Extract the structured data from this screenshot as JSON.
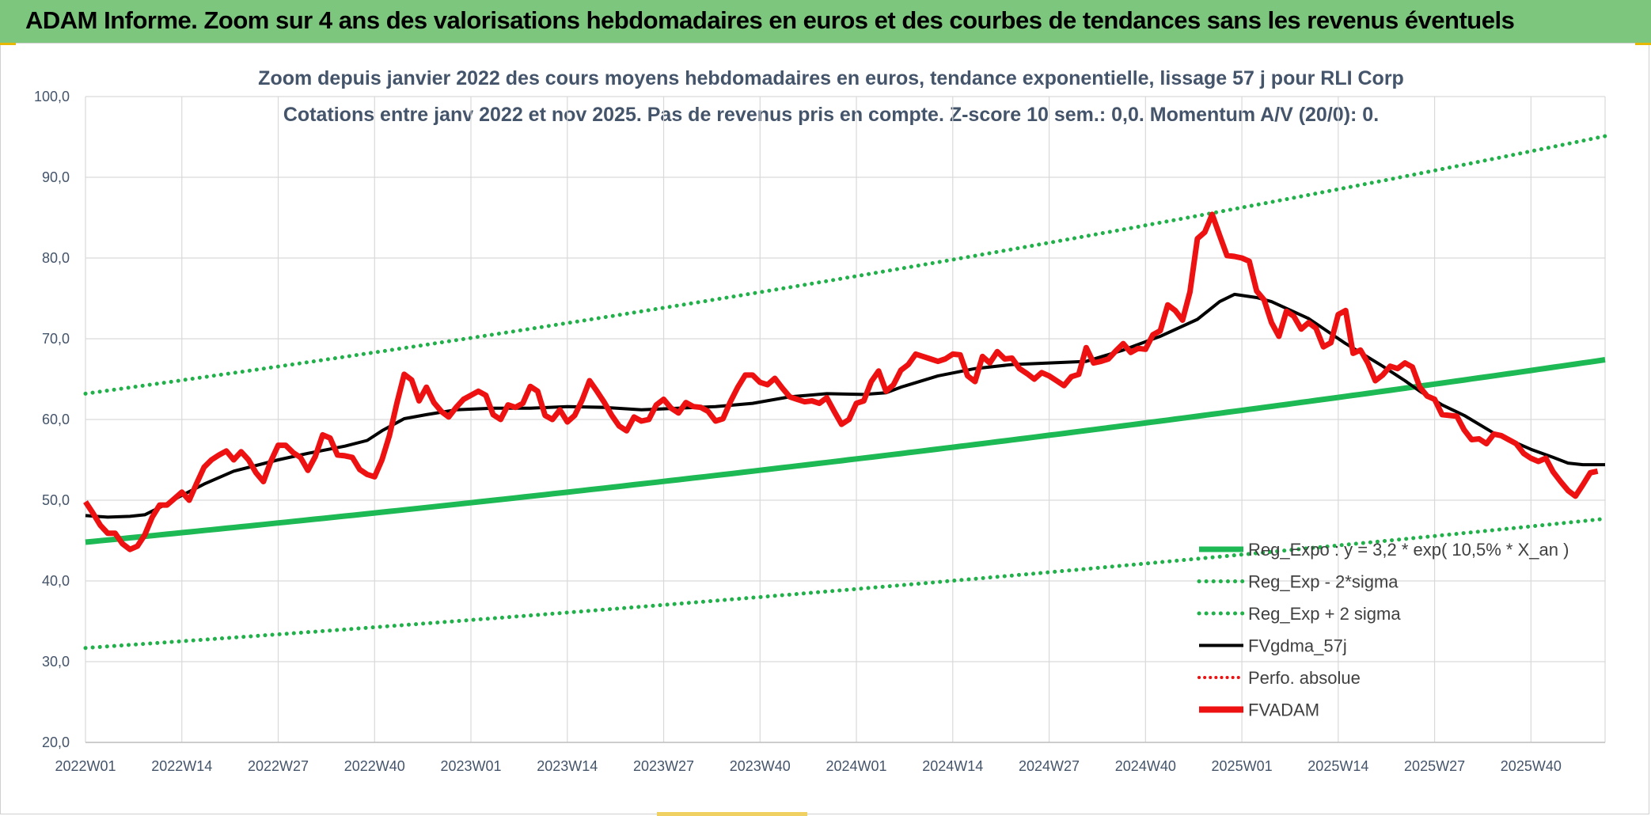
{
  "header": {
    "title": "ADAM Informe. Zoom sur 4 ans des valorisations hebdomadaires en euros et des courbes de tendances sans les revenus éventuels"
  },
  "colors": {
    "trend_green": "#1db954",
    "dotted_green": "#22b04b",
    "ma_black": "#000000",
    "price_red": "#ee1111",
    "grid": "#d9d9d9",
    "banner": "#7dc67d"
  },
  "chart_data": {
    "type": "line",
    "title_line1": "Zoom depuis janvier 2022 des cours moyens hebdomadaires en euros, tendance exponentielle, lissage 57 j pour RLI Corp",
    "title_line2": "Cotations entre janv 2022 et nov 2025. Pas de revenus pris en compte. Z-score 10 sem.: 0,0. Momentum A/V (20/0): 0.",
    "ylim": [
      20,
      100
    ],
    "y_ticks": [
      "20,0",
      "30,0",
      "40,0",
      "50,0",
      "60,0",
      "70,0",
      "80,0",
      "90,0",
      "100,0"
    ],
    "x_ticks": [
      "2022W01",
      "2022W14",
      "2022W27",
      "2022W40",
      "2023W01",
      "2023W14",
      "2023W27",
      "2023W40",
      "2024W01",
      "2024W14",
      "2024W27",
      "2024W40",
      "2025W01",
      "2025W14",
      "2025W27",
      "2025W40"
    ],
    "x_tick_weeks": [
      0,
      13,
      26,
      39,
      52,
      65,
      78,
      91,
      104,
      117,
      130,
      143,
      156,
      169,
      182,
      195
    ],
    "n_weeks": 205,
    "legend": [
      {
        "name": "Reg_Expo : y = 3,2 * exp( 10,5% *  X_an )",
        "style": "solid-green"
      },
      {
        "name": "Reg_Exp - 2*sigma",
        "style": "dotted-green"
      },
      {
        "name": "Reg_Exp + 2 sigma",
        "style": "dotted-green"
      },
      {
        "name": "FVgdma_57j",
        "style": "solid-black"
      },
      {
        "name": "Perfo. absolue",
        "style": "dotted-red"
      },
      {
        "name": "FVADAM",
        "style": "solid-red-thick"
      }
    ],
    "series": [
      {
        "name": "Reg_Expo",
        "start": 44.8,
        "end": 67.4
      },
      {
        "name": "Reg_Exp - 2*sigma",
        "start": 31.7,
        "end": 47.7
      },
      {
        "name": "Reg_Exp + 2 sigma",
        "start": 63.2,
        "end": 95.1
      },
      {
        "name": "FVgdma_57j",
        "points": [
          [
            0,
            48.1
          ],
          [
            3,
            47.9
          ],
          [
            6,
            48.0
          ],
          [
            8,
            48.2
          ],
          [
            10,
            49.1
          ],
          [
            13,
            50.6
          ],
          [
            16,
            52.0
          ],
          [
            20,
            53.6
          ],
          [
            26,
            55.0
          ],
          [
            30,
            55.8
          ],
          [
            35,
            56.7
          ],
          [
            38,
            57.4
          ],
          [
            40,
            58.6
          ],
          [
            43,
            60.1
          ],
          [
            46,
            60.6
          ],
          [
            50,
            61.2
          ],
          [
            55,
            61.4
          ],
          [
            60,
            61.4
          ],
          [
            65,
            61.6
          ],
          [
            70,
            61.5
          ],
          [
            75,
            61.2
          ],
          [
            80,
            61.4
          ],
          [
            85,
            61.6
          ],
          [
            90,
            62.0
          ],
          [
            95,
            62.8
          ],
          [
            100,
            63.2
          ],
          [
            105,
            63.1
          ],
          [
            108,
            63.3
          ],
          [
            110,
            64.0
          ],
          [
            115,
            65.4
          ],
          [
            120,
            66.3
          ],
          [
            125,
            66.8
          ],
          [
            130,
            67.0
          ],
          [
            135,
            67.2
          ],
          [
            140,
            68.6
          ],
          [
            145,
            70.3
          ],
          [
            150,
            72.4
          ],
          [
            153,
            74.6
          ],
          [
            155,
            75.5
          ],
          [
            158,
            75.1
          ],
          [
            160,
            74.6
          ],
          [
            165,
            72.5
          ],
          [
            170,
            69.4
          ],
          [
            175,
            66.6
          ],
          [
            178,
            64.8
          ],
          [
            180,
            63.5
          ],
          [
            183,
            61.8
          ],
          [
            186,
            60.5
          ],
          [
            190,
            58.3
          ],
          [
            195,
            56.3
          ],
          [
            198,
            55.3
          ],
          [
            200,
            54.6
          ],
          [
            202,
            54.4
          ],
          [
            205,
            54.4
          ]
        ]
      },
      {
        "name": "FVADAM",
        "points": [
          [
            0,
            49.8
          ],
          [
            1,
            48.4
          ],
          [
            2,
            46.9
          ],
          [
            3,
            45.9
          ],
          [
            4,
            45.9
          ],
          [
            5,
            44.6
          ],
          [
            6,
            43.9
          ],
          [
            7,
            44.3
          ],
          [
            8,
            45.7
          ],
          [
            9,
            47.9
          ],
          [
            10,
            49.4
          ],
          [
            11,
            49.4
          ],
          [
            12,
            50.2
          ],
          [
            13,
            51.0
          ],
          [
            14,
            50.0
          ],
          [
            15,
            52.1
          ],
          [
            16,
            54.1
          ],
          [
            17,
            55.0
          ],
          [
            18,
            55.6
          ],
          [
            19,
            56.1
          ],
          [
            20,
            55.0
          ],
          [
            21,
            56.0
          ],
          [
            22,
            55.0
          ],
          [
            23,
            53.4
          ],
          [
            24,
            52.3
          ],
          [
            25,
            54.8
          ],
          [
            26,
            56.8
          ],
          [
            27,
            56.8
          ],
          [
            28,
            55.9
          ],
          [
            29,
            55.3
          ],
          [
            30,
            53.7
          ],
          [
            31,
            55.4
          ],
          [
            32,
            58.1
          ],
          [
            33,
            57.7
          ],
          [
            34,
            55.6
          ],
          [
            35,
            55.5
          ],
          [
            36,
            55.3
          ],
          [
            37,
            53.8
          ],
          [
            38,
            53.2
          ],
          [
            39,
            52.9
          ],
          [
            40,
            55.0
          ],
          [
            41,
            58.0
          ],
          [
            42,
            62.0
          ],
          [
            43,
            65.6
          ],
          [
            44,
            64.9
          ],
          [
            45,
            62.3
          ],
          [
            46,
            64.0
          ],
          [
            47,
            62.1
          ],
          [
            48,
            61.0
          ],
          [
            49,
            60.3
          ],
          [
            50,
            61.5
          ],
          [
            51,
            62.5
          ],
          [
            52,
            63.0
          ],
          [
            53,
            63.5
          ],
          [
            54,
            63.0
          ],
          [
            55,
            60.6
          ],
          [
            56,
            60.0
          ],
          [
            57,
            61.8
          ],
          [
            58,
            61.5
          ],
          [
            59,
            62.0
          ],
          [
            60,
            64.1
          ],
          [
            61,
            63.5
          ],
          [
            62,
            60.5
          ],
          [
            63,
            60.0
          ],
          [
            64,
            61.2
          ],
          [
            65,
            59.7
          ],
          [
            66,
            60.5
          ],
          [
            67,
            62.4
          ],
          [
            68,
            64.8
          ],
          [
            69,
            63.5
          ],
          [
            70,
            62.1
          ],
          [
            71,
            60.5
          ],
          [
            72,
            59.2
          ],
          [
            73,
            58.6
          ],
          [
            74,
            60.3
          ],
          [
            75,
            59.8
          ],
          [
            76,
            60.0
          ],
          [
            77,
            61.8
          ],
          [
            78,
            62.5
          ],
          [
            79,
            61.4
          ],
          [
            80,
            60.8
          ],
          [
            81,
            62.1
          ],
          [
            82,
            61.6
          ],
          [
            83,
            61.5
          ],
          [
            84,
            61.0
          ],
          [
            85,
            59.8
          ],
          [
            86,
            60.1
          ],
          [
            87,
            62.2
          ],
          [
            88,
            64.0
          ],
          [
            89,
            65.5
          ],
          [
            90,
            65.5
          ],
          [
            91,
            64.6
          ],
          [
            92,
            64.3
          ],
          [
            93,
            65.1
          ],
          [
            94,
            63.9
          ],
          [
            95,
            62.8
          ],
          [
            96,
            62.5
          ],
          [
            97,
            62.2
          ],
          [
            98,
            62.3
          ],
          [
            99,
            62.0
          ],
          [
            100,
            62.7
          ],
          [
            101,
            61.0
          ],
          [
            102,
            59.4
          ],
          [
            103,
            60.0
          ],
          [
            104,
            62.0
          ],
          [
            105,
            62.3
          ],
          [
            106,
            64.7
          ],
          [
            107,
            66.0
          ],
          [
            108,
            63.5
          ],
          [
            109,
            64.3
          ],
          [
            110,
            66.1
          ],
          [
            111,
            66.8
          ],
          [
            112,
            68.1
          ],
          [
            113,
            67.8
          ],
          [
            114,
            67.5
          ],
          [
            115,
            67.2
          ],
          [
            116,
            67.5
          ],
          [
            117,
            68.1
          ],
          [
            118,
            68.0
          ],
          [
            119,
            65.4
          ],
          [
            120,
            64.7
          ],
          [
            121,
            67.8
          ],
          [
            122,
            67.0
          ],
          [
            123,
            68.4
          ],
          [
            124,
            67.5
          ],
          [
            125,
            67.6
          ],
          [
            126,
            66.3
          ],
          [
            127,
            65.7
          ],
          [
            128,
            65.0
          ],
          [
            129,
            65.8
          ],
          [
            130,
            65.4
          ],
          [
            131,
            64.8
          ],
          [
            132,
            64.2
          ],
          [
            133,
            65.3
          ],
          [
            134,
            65.6
          ],
          [
            135,
            68.9
          ],
          [
            136,
            67.0
          ],
          [
            137,
            67.2
          ],
          [
            138,
            67.5
          ],
          [
            139,
            68.5
          ],
          [
            140,
            69.4
          ],
          [
            141,
            68.3
          ],
          [
            142,
            68.8
          ],
          [
            143,
            68.7
          ],
          [
            144,
            70.5
          ],
          [
            145,
            71.0
          ],
          [
            146,
            74.2
          ],
          [
            147,
            73.5
          ],
          [
            148,
            72.3
          ],
          [
            149,
            75.8
          ],
          [
            150,
            82.4
          ],
          [
            151,
            83.2
          ],
          [
            152,
            85.4
          ],
          [
            153,
            82.8
          ],
          [
            154,
            80.3
          ],
          [
            155,
            80.2
          ],
          [
            156,
            80.0
          ],
          [
            157,
            79.6
          ],
          [
            158,
            75.9
          ],
          [
            159,
            74.8
          ],
          [
            160,
            72.0
          ],
          [
            161,
            70.3
          ],
          [
            162,
            73.4
          ],
          [
            163,
            72.8
          ],
          [
            164,
            71.2
          ],
          [
            165,
            72.0
          ],
          [
            166,
            71.3
          ],
          [
            167,
            69.0
          ],
          [
            168,
            69.5
          ],
          [
            169,
            73.0
          ],
          [
            170,
            73.5
          ],
          [
            171,
            68.2
          ],
          [
            172,
            68.6
          ],
          [
            173,
            67.0
          ],
          [
            174,
            64.8
          ],
          [
            175,
            65.5
          ],
          [
            176,
            66.6
          ],
          [
            177,
            66.3
          ],
          [
            178,
            67.0
          ],
          [
            179,
            66.5
          ],
          [
            180,
            64.0
          ],
          [
            181,
            62.9
          ],
          [
            182,
            62.5
          ],
          [
            183,
            60.6
          ],
          [
            184,
            60.5
          ],
          [
            185,
            60.4
          ],
          [
            186,
            58.7
          ],
          [
            187,
            57.5
          ],
          [
            188,
            57.6
          ],
          [
            189,
            57.0
          ],
          [
            190,
            58.2
          ],
          [
            191,
            58.0
          ],
          [
            192,
            57.5
          ],
          [
            193,
            57.0
          ],
          [
            194,
            55.8
          ],
          [
            195,
            55.2
          ],
          [
            196,
            54.8
          ],
          [
            197,
            55.2
          ],
          [
            198,
            53.5
          ],
          [
            199,
            52.3
          ],
          [
            200,
            51.2
          ],
          [
            201,
            50.5
          ],
          [
            202,
            51.9
          ],
          [
            203,
            53.4
          ],
          [
            204,
            53.6
          ]
        ]
      }
    ]
  }
}
